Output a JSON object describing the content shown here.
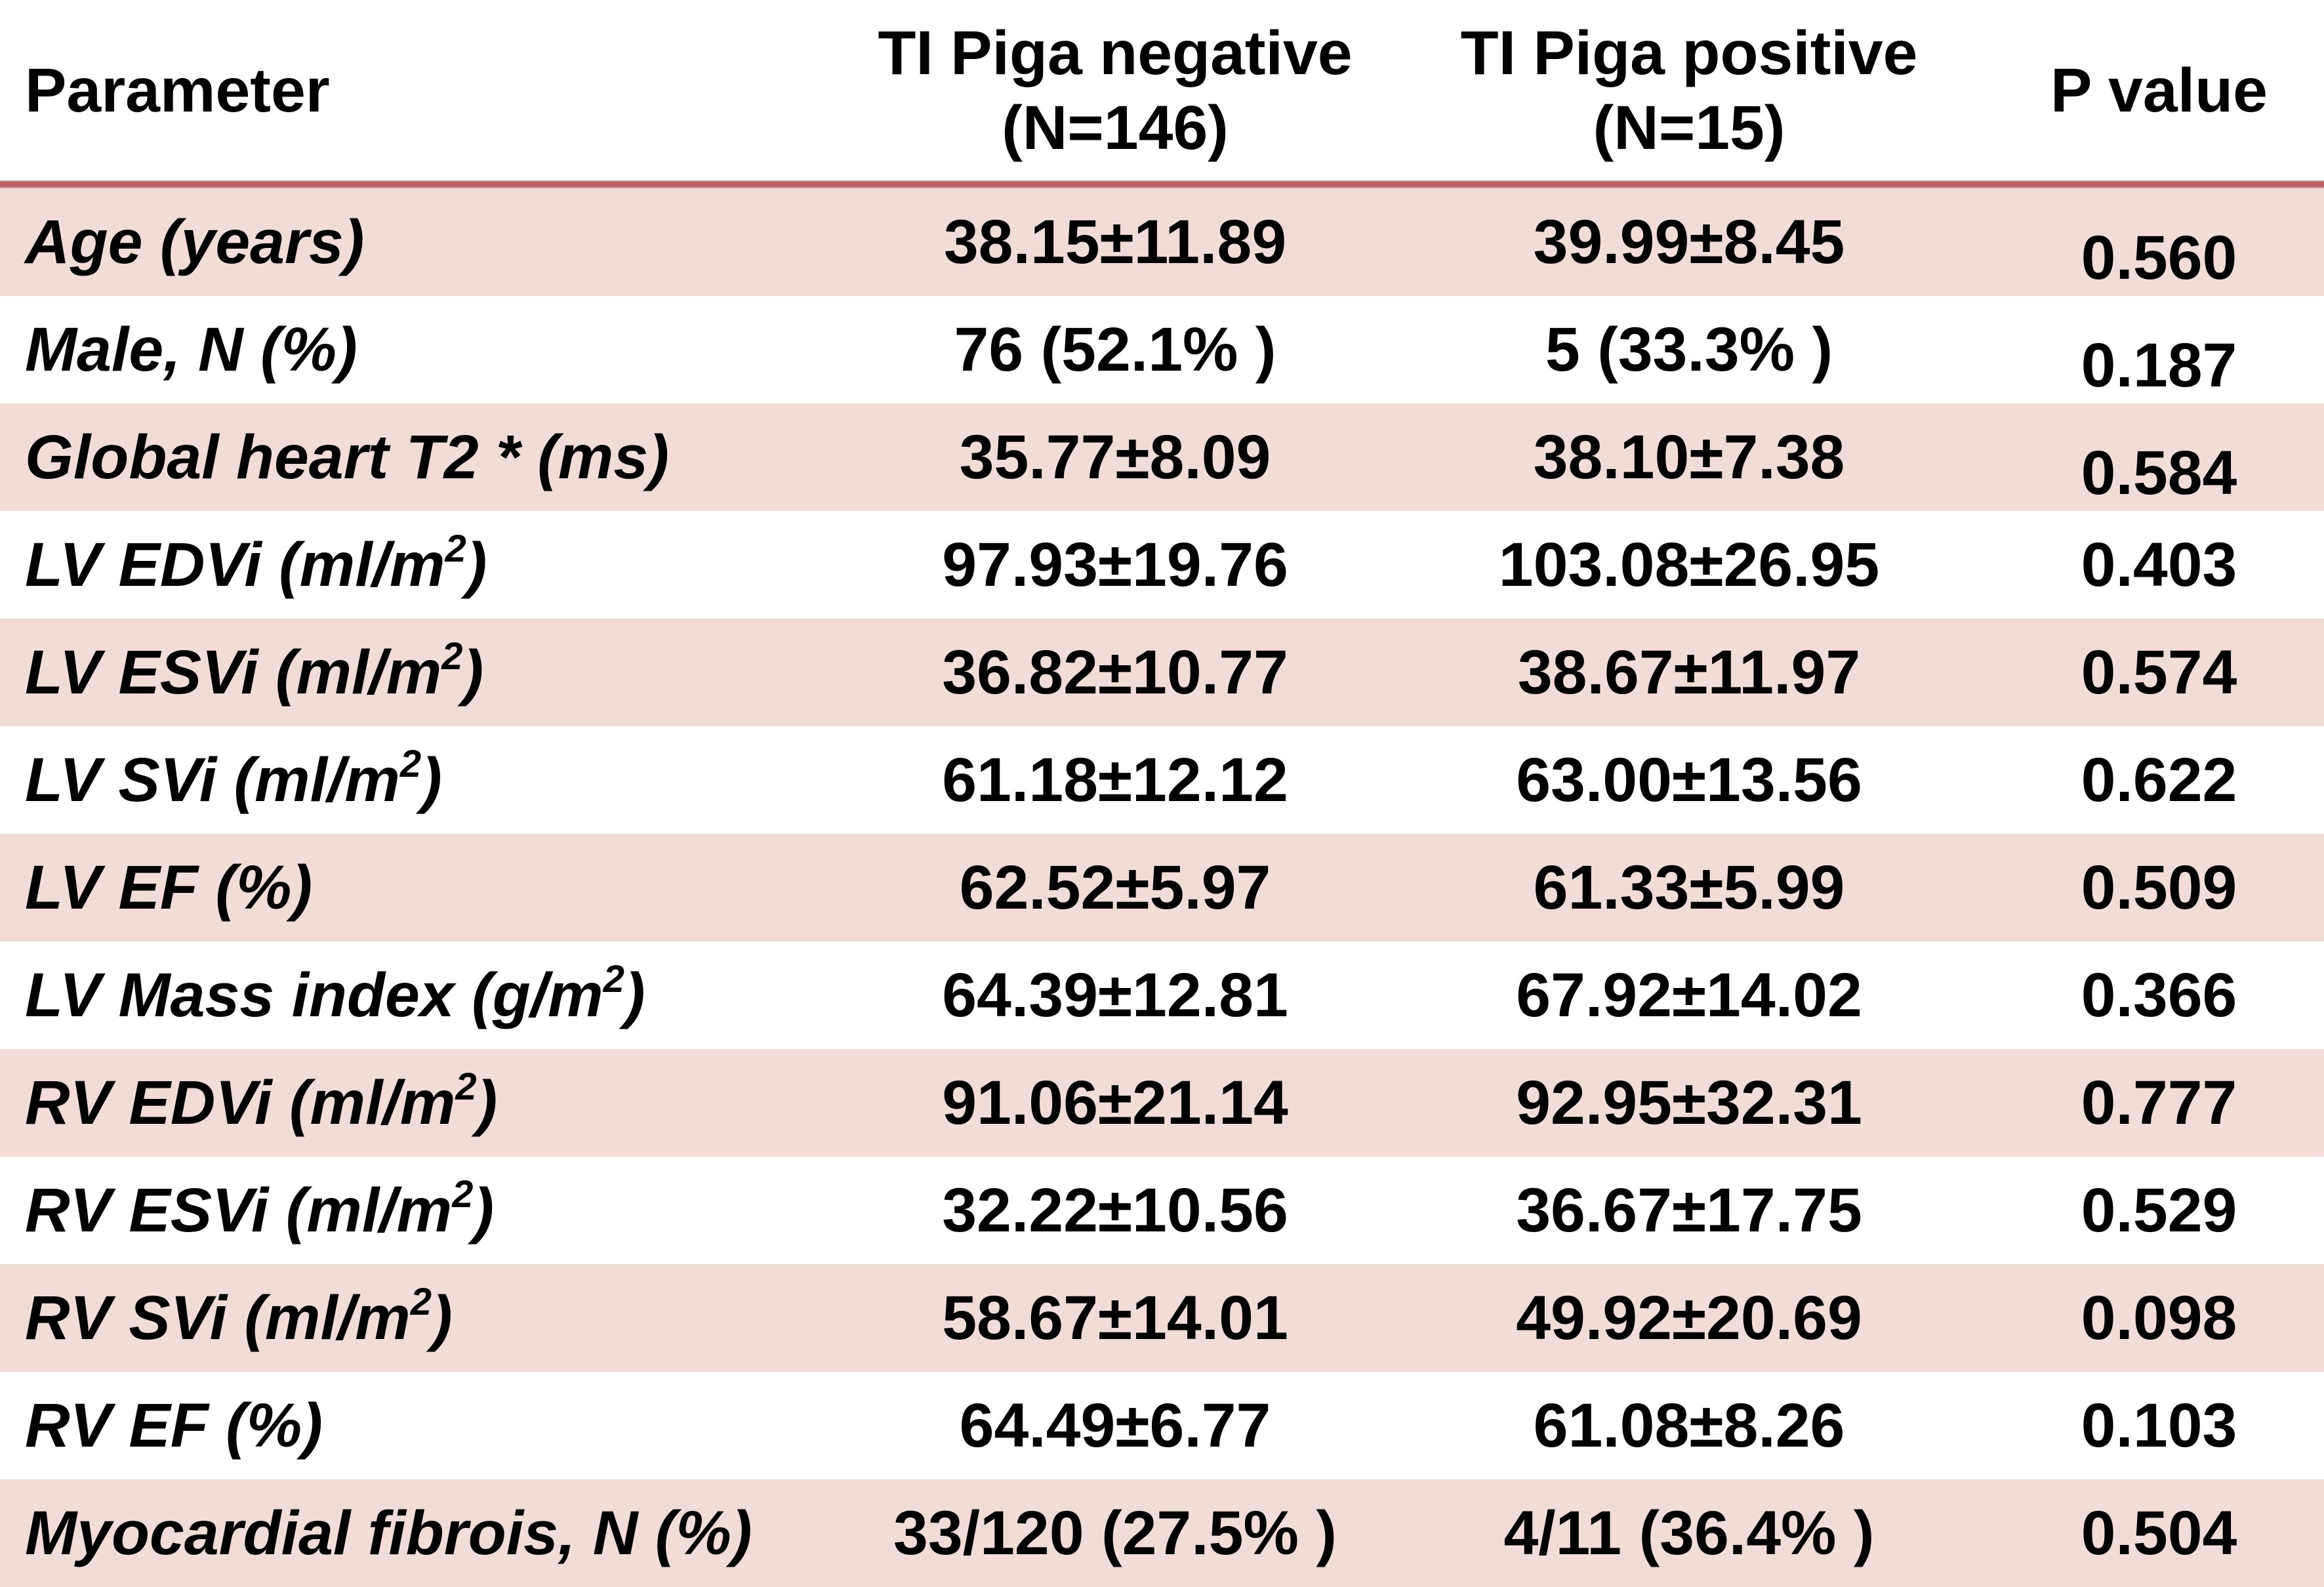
{
  "colors": {
    "row_pink": "#f2dcd8",
    "header_rule": "#b96069",
    "text": "#000000",
    "background": "#ffffff"
  },
  "header": {
    "parameter": "Parameter",
    "negative_line1": "TI Piga negative",
    "negative_line2": "(N=146)",
    "positive_line1": "TI Piga positive",
    "positive_line2": "(N=15)",
    "p_value": "P value"
  },
  "rows": [
    {
      "param_pre": "Age (years)",
      "param_sup": "",
      "param_post": "",
      "neg": "38.15±11.89",
      "pos": "39.99±8.45",
      "p": "0.560"
    },
    {
      "param_pre": "Male, N (%)",
      "param_sup": "",
      "param_post": "",
      "neg": "76 (52.1% )",
      "pos": "5 (33.3% )",
      "p": "0.187"
    },
    {
      "param_pre": "Global heart T2 * (ms)",
      "param_sup": "",
      "param_post": "",
      "neg": "35.77±8.09",
      "pos": "38.10±7.38",
      "p": "0.584"
    },
    {
      "param_pre": "LV EDVi (ml/m",
      "param_sup": "2",
      "param_post": ")",
      "neg": "97.93±19.76",
      "pos": "103.08±26.95",
      "p": "0.403"
    },
    {
      "param_pre": "LV ESVi (ml/m",
      "param_sup": "2",
      "param_post": ")",
      "neg": "36.82±10.77",
      "pos": "38.67±11.97",
      "p": "0.574"
    },
    {
      "param_pre": "LV SVi (ml/m",
      "param_sup": "2",
      "param_post": ")",
      "neg": "61.18±12.12",
      "pos": "63.00±13.56",
      "p": "0.622"
    },
    {
      "param_pre": "LV EF (%)",
      "param_sup": "",
      "param_post": "",
      "neg": "62.52±5.97",
      "pos": "61.33±5.99",
      "p": "0.509"
    },
    {
      "param_pre": "LV Mass index (g/m",
      "param_sup": "2",
      "param_post": ")",
      "neg": "64.39±12.81",
      "pos": "67.92±14.02",
      "p": "0.366"
    },
    {
      "param_pre": "RV EDVi (ml/m",
      "param_sup": "2",
      "param_post": ")",
      "neg": "91.06±21.14",
      "pos": "92.95±32.31",
      "p": "0.777"
    },
    {
      "param_pre": "RV ESVi (ml/m",
      "param_sup": "2",
      "param_post": ")",
      "neg": "32.22±10.56",
      "pos": "36.67±17.75",
      "p": "0.529"
    },
    {
      "param_pre": "RV SVi (ml/m",
      "param_sup": "2",
      "param_post": ")",
      "neg": "58.67±14.01",
      "pos": "49.92±20.69",
      "p": "0.098"
    },
    {
      "param_pre": "RV EF (%)",
      "param_sup": "",
      "param_post": "",
      "neg": "64.49±6.77",
      "pos": "61.08±8.26",
      "p": "0.103"
    },
    {
      "param_pre": "Myocardial fibrois, N (%)",
      "param_sup": "",
      "param_post": "",
      "neg": "33/120 (27.5% )",
      "pos": "4/11 (36.4% )",
      "p": "0.504"
    }
  ]
}
